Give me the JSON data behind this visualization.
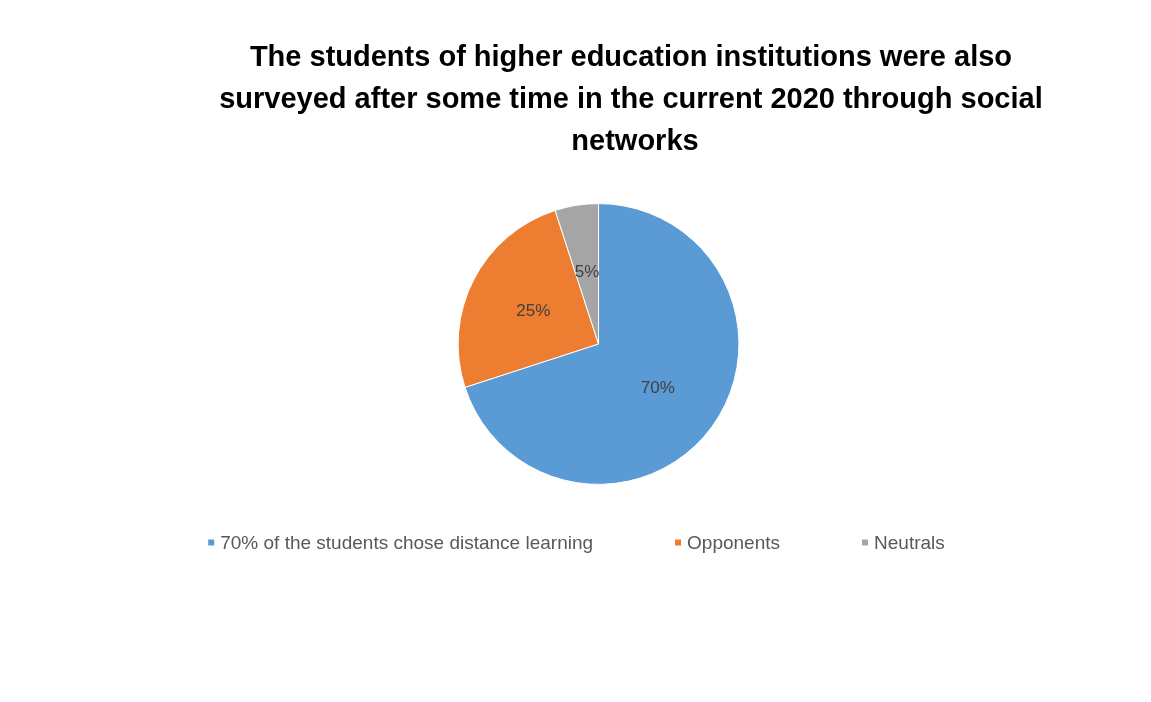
{
  "chart_data": {
    "type": "pie",
    "title": "The students of higher education institutions were also surveyed after some time in the current 2020 through social networks",
    "categories": [
      "70% of the students chose distance learning",
      "Opponents",
      "Neutrals"
    ],
    "values": [
      70,
      25,
      5
    ],
    "colors": [
      "#5b9bd5",
      "#ed7d31",
      "#a5a5a5"
    ],
    "value_labels": [
      "70%",
      "25%",
      "5%"
    ],
    "legend": "bottom"
  }
}
